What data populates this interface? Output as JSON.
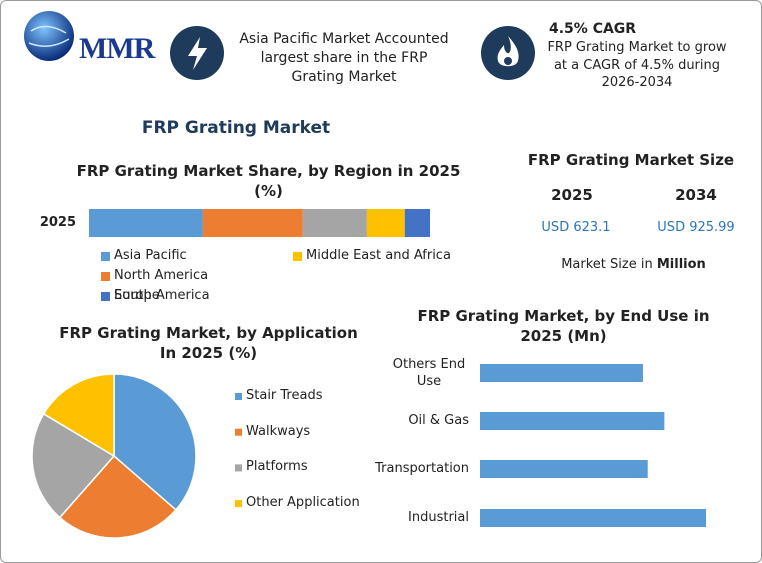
{
  "header": {
    "logo": "MMR",
    "highlight": "Asia Pacific Market Accounted largest share in the FRP Grating Market",
    "cagr_title": "4.5% CAGR",
    "cagr_text": "FRP Grating Market to grow at a CAGR of 4.5% during 2026-2034",
    "title": "FRP Grating Market"
  },
  "market_size": {
    "title": "FRP Grating Market Size",
    "years": [
      "2025",
      "2034"
    ],
    "values": [
      "USD 623.1",
      "USD 925.99"
    ],
    "note": "Market Size in",
    "note_unit": "Million"
  },
  "chart_data": [
    {
      "type": "bar",
      "stacked": true,
      "title": "FRP Grating Market Share, by Region in 2025 (%)",
      "categories": [
        "2025"
      ],
      "series": [
        {
          "name": "Asia Pacific",
          "color": "#5b9bd5",
          "values": [
            33.4
          ]
        },
        {
          "name": "North America",
          "color": "#ed7d31",
          "values": [
            29.3
          ]
        },
        {
          "name": "Europe",
          "color": "#a5a5a5",
          "values": [
            18.8
          ]
        },
        {
          "name": "Middle East and Africa",
          "color": "#ffc000",
          "values": [
            11.1
          ]
        },
        {
          "name": "South America",
          "color": "#4472c4",
          "values": [
            7.4
          ]
        }
      ]
    },
    {
      "type": "pie",
      "title": "FRP Grating Market, by Application In 2025 (%)",
      "categories": [
        "Stair Treads",
        "Walkways",
        "Platforms",
        "Other Application"
      ],
      "values": [
        36.4,
        25.1,
        22.1,
        16.4
      ],
      "colors": [
        "#5b9bd5",
        "#ed7d31",
        "#a5a5a5",
        "#ffc000"
      ]
    },
    {
      "type": "bar",
      "stacked": false,
      "title": "FRP Grating Market, by End Use in 2025 (Mn)",
      "categories": [
        "Others End Use",
        "Oil & Gas",
        "Transportation",
        "Industrial"
      ],
      "values": [
        137,
        155,
        141,
        190
      ],
      "color": "#5b9bd5"
    }
  ]
}
